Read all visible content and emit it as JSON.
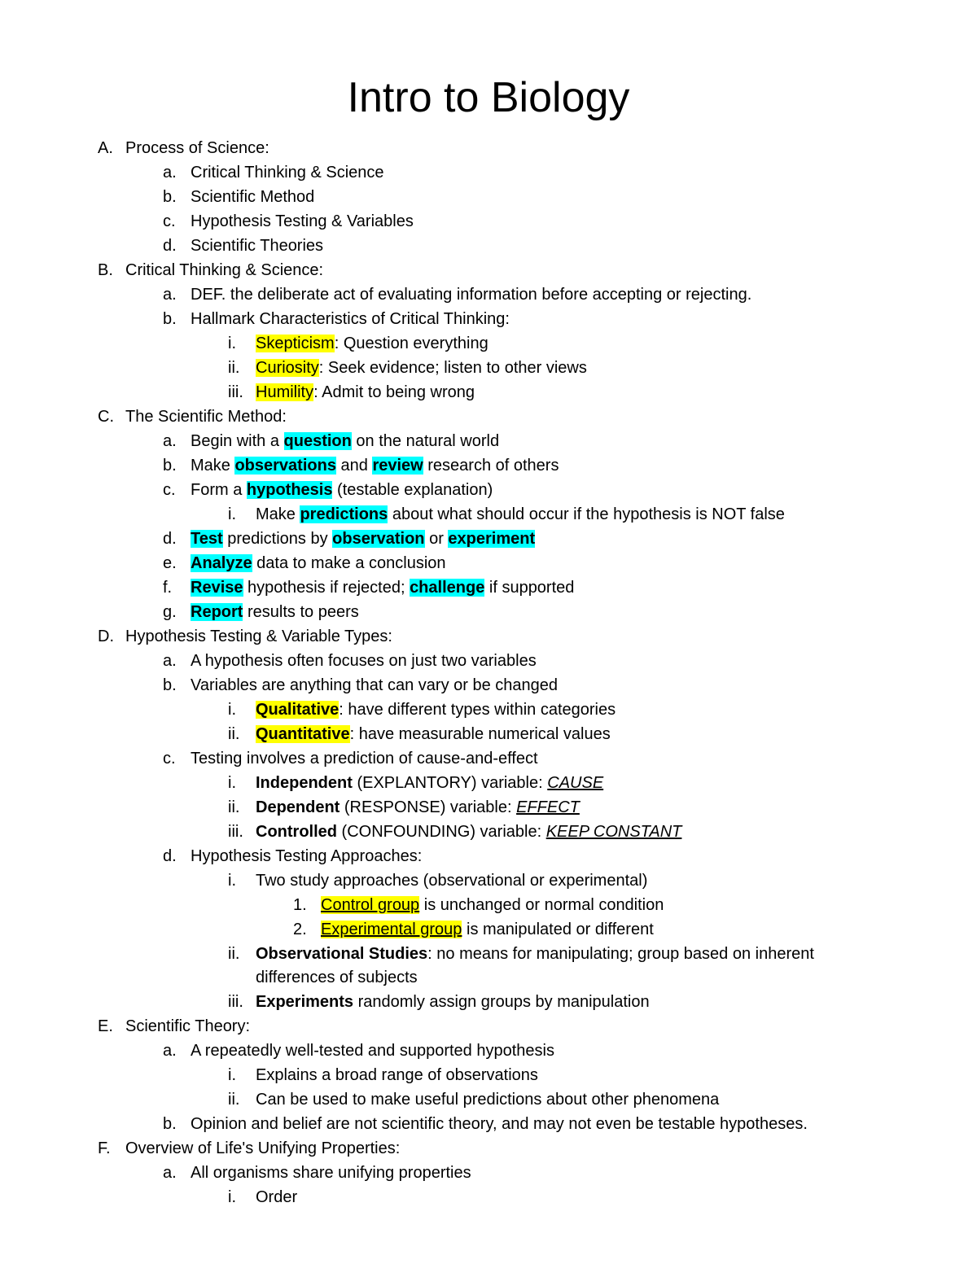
{
  "title": "Intro to Biology",
  "colors": {
    "highlight_yellow": "#ffff00",
    "highlight_cyan": "#00ffff",
    "text": "#000000",
    "bg": "#ffffff"
  },
  "items": [
    {
      "level": 0,
      "marker": "A.",
      "runs": [
        {
          "t": "Process of Science:"
        }
      ]
    },
    {
      "level": 1,
      "marker": "a.",
      "runs": [
        {
          "t": "Critical Thinking & Science"
        }
      ]
    },
    {
      "level": 1,
      "marker": "b.",
      "runs": [
        {
          "t": "Scientific Method"
        }
      ]
    },
    {
      "level": 1,
      "marker": "c.",
      "runs": [
        {
          "t": "Hypothesis Testing & Variables"
        }
      ]
    },
    {
      "level": 1,
      "marker": "d.",
      "runs": [
        {
          "t": "Scientific Theories"
        }
      ]
    },
    {
      "level": 0,
      "marker": "B.",
      "runs": [
        {
          "t": "Critical Thinking & Science:"
        }
      ]
    },
    {
      "level": 1,
      "marker": "a.",
      "runs": [
        {
          "t": "DEF. the deliberate act of evaluating information before accepting or rejecting."
        }
      ]
    },
    {
      "level": 1,
      "marker": "b.",
      "runs": [
        {
          "t": "Hallmark Characteristics of Critical Thinking:"
        }
      ]
    },
    {
      "level": 2,
      "marker": "i.",
      "runs": [
        {
          "t": " Skepticism",
          "hl": "y"
        },
        {
          "t": ": Question everything"
        }
      ]
    },
    {
      "level": 2,
      "marker": "ii.",
      "runs": [
        {
          "t": " Curiosity",
          "hl": "y"
        },
        {
          "t": ": Seek evidence; listen to other views"
        }
      ]
    },
    {
      "level": 2,
      "marker": "iii.",
      "runs": [
        {
          "t": " Humility",
          "hl": "y"
        },
        {
          "t": ": Admit to being wrong"
        }
      ]
    },
    {
      "level": 0,
      "marker": "C.",
      "runs": [
        {
          "t": "The Scientific Method:"
        }
      ]
    },
    {
      "level": 1,
      "marker": "a.",
      "runs": [
        {
          "t": "Begin with a "
        },
        {
          "t": "question",
          "hl": "c",
          "b": true
        },
        {
          "t": " on the natural world"
        }
      ]
    },
    {
      "level": 1,
      "marker": "b.",
      "runs": [
        {
          "t": "Make "
        },
        {
          "t": "observations",
          "hl": "c",
          "b": true
        },
        {
          "t": " and "
        },
        {
          "t": "review",
          "hl": "c",
          "b": true
        },
        {
          "t": " research of others"
        }
      ]
    },
    {
      "level": 1,
      "marker": "c.",
      "runs": [
        {
          "t": "Form a "
        },
        {
          "t": "hypothesis",
          "hl": "c",
          "b": true
        },
        {
          "t": " (testable explanation)"
        }
      ]
    },
    {
      "level": 2,
      "marker": "i.",
      "runs": [
        {
          "t": "Make "
        },
        {
          "t": "predictions",
          "hl": "c",
          "b": true
        },
        {
          "t": " about what should occur if the hypothesis is NOT false"
        }
      ]
    },
    {
      "level": 1,
      "marker": "d.",
      "runs": [
        {
          "t": "Test",
          "hl": "c",
          "b": true
        },
        {
          "t": " predictions by "
        },
        {
          "t": "observation",
          "hl": "c",
          "b": true
        },
        {
          "t": " or "
        },
        {
          "t": "experiment",
          "hl": "c",
          "b": true
        }
      ]
    },
    {
      "level": 1,
      "marker": "e.",
      "runs": [
        {
          "t": "Analyze",
          "hl": "c",
          "b": true
        },
        {
          "t": " data to make a conclusion"
        }
      ]
    },
    {
      "level": 1,
      "marker": "f.",
      "runs": [
        {
          "t": "Revise",
          "hl": "c",
          "b": true
        },
        {
          "t": " hypothesis if rejected; "
        },
        {
          "t": "challenge",
          "hl": "c",
          "b": true
        },
        {
          "t": " if supported"
        }
      ]
    },
    {
      "level": 1,
      "marker": "g.",
      "runs": [
        {
          "t": "Report",
          "hl": "c",
          "b": true
        },
        {
          "t": " results to peers"
        }
      ]
    },
    {
      "level": 0,
      "marker": "D.",
      "runs": [
        {
          "t": "Hypothesis Testing & Variable Types:"
        }
      ]
    },
    {
      "level": 1,
      "marker": "a.",
      "runs": [
        {
          "t": "A hypothesis often focuses on just two variables"
        }
      ]
    },
    {
      "level": 1,
      "marker": "b.",
      "runs": [
        {
          "t": "Variables are anything that can vary or be changed"
        }
      ]
    },
    {
      "level": 2,
      "marker": "i.",
      "runs": [
        {
          "t": "Qualitative",
          "hl": "y",
          "b": true
        },
        {
          "t": ": have different types within categories"
        }
      ]
    },
    {
      "level": 2,
      "marker": "ii.",
      "runs": [
        {
          "t": "Quantitative",
          "hl": "y",
          "b": true
        },
        {
          "t": ": have measurable numerical values"
        }
      ]
    },
    {
      "level": 1,
      "marker": "c.",
      "runs": [
        {
          "t": "Testing involves a prediction of cause-and-effect"
        }
      ]
    },
    {
      "level": 2,
      "marker": "i.",
      "runs": [
        {
          "t": "Independent",
          "b": true
        },
        {
          "t": " (EXPLANTORY) variable: "
        },
        {
          "t": "CAUSE",
          "u": true,
          "i": true
        }
      ]
    },
    {
      "level": 2,
      "marker": "ii.",
      "runs": [
        {
          "t": "Dependent",
          "b": true
        },
        {
          "t": " (RESPONSE) variable: "
        },
        {
          "t": "EFFECT",
          "u": true,
          "i": true
        }
      ]
    },
    {
      "level": 2,
      "marker": "iii.",
      "runs": [
        {
          "t": "Controlled",
          "b": true
        },
        {
          "t": " (CONFOUNDING) variable: "
        },
        {
          "t": "KEEP CONSTANT",
          "u": true,
          "i": true
        }
      ]
    },
    {
      "level": 1,
      "marker": "d.",
      "runs": [
        {
          "t": "Hypothesis Testing Approaches:"
        }
      ]
    },
    {
      "level": 2,
      "marker": "i.",
      "runs": [
        {
          "t": "Two study approaches (observational or experimental)"
        }
      ]
    },
    {
      "level": 3,
      "marker": "1.",
      "runs": [
        {
          "t": "Control group",
          "hl": "y",
          "u": true
        },
        {
          "t": " is unchanged or normal condition"
        }
      ]
    },
    {
      "level": 3,
      "marker": "2.",
      "runs": [
        {
          "t": "Experimental group",
          "hl": "y",
          "u": true
        },
        {
          "t": " is manipulated or different"
        }
      ]
    },
    {
      "level": 2,
      "marker": "ii.",
      "runs": [
        {
          "t": "Observational Studies",
          "b": true
        },
        {
          "t": ": no means for manipulating; group based on inherent differences of subjects"
        }
      ]
    },
    {
      "level": 2,
      "marker": "iii.",
      "runs": [
        {
          "t": "Experiments",
          "b": true
        },
        {
          "t": " randomly assign groups by manipulation"
        }
      ]
    },
    {
      "level": 0,
      "marker": "E.",
      "runs": [
        {
          "t": "Scientific Theory:"
        }
      ]
    },
    {
      "level": 1,
      "marker": "a.",
      "runs": [
        {
          "t": "A repeatedly well-tested and supported hypothesis"
        }
      ]
    },
    {
      "level": 2,
      "marker": "i.",
      "runs": [
        {
          "t": "Explains a broad range of observations"
        }
      ]
    },
    {
      "level": 2,
      "marker": "ii.",
      "runs": [
        {
          "t": "Can be used to make useful predictions about other phenomena"
        }
      ]
    },
    {
      "level": 1,
      "marker": "b.",
      "runs": [
        {
          "t": "Opinion and belief are not scientific theory, and may not even be testable hypotheses."
        }
      ]
    },
    {
      "level": 0,
      "marker": "F.",
      "runs": [
        {
          "t": "Overview of Life's Unifying Properties:"
        }
      ]
    },
    {
      "level": 1,
      "marker": "a.",
      "runs": [
        {
          "t": "All organisms share unifying properties"
        }
      ]
    },
    {
      "level": 2,
      "marker": "i.",
      "runs": [
        {
          "t": "Order"
        }
      ]
    }
  ]
}
